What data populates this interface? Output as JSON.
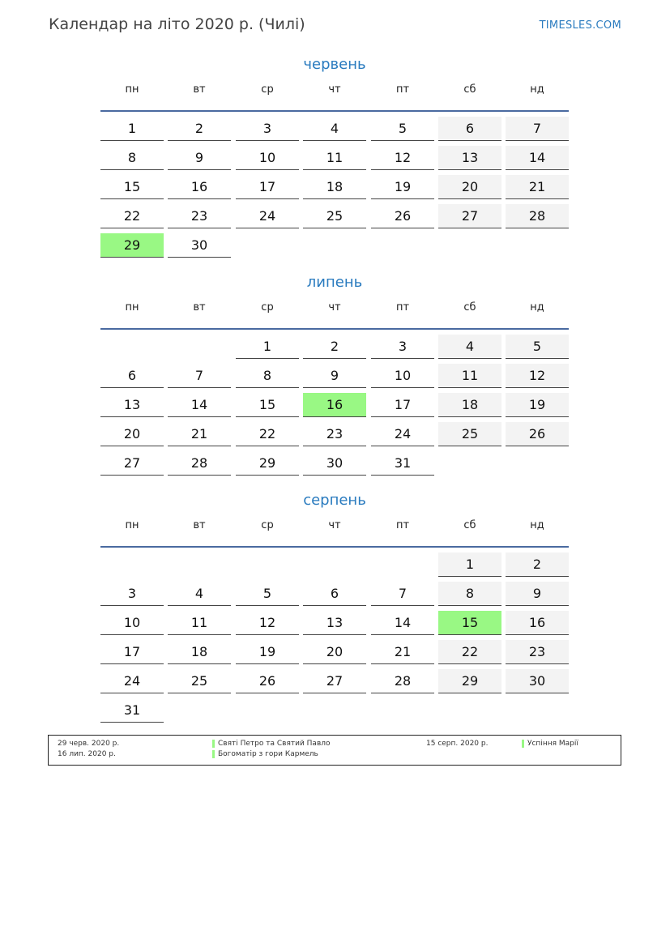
{
  "header": {
    "title": "Календар на літо 2020 р. (Чилі)",
    "site": "TIMESLES.COM"
  },
  "weekdays": [
    "пн",
    "вт",
    "ср",
    "чт",
    "пт",
    "сб",
    "нд"
  ],
  "colors": {
    "accent": "#2a7bbf",
    "holiday": "#99f884",
    "weekend": "#f3f3f3",
    "rule": "#4a6aa0"
  },
  "months": [
    {
      "name": "червень",
      "start_weekday": 0,
      "days": 30,
      "holidays": [
        29
      ]
    },
    {
      "name": "липень",
      "start_weekday": 2,
      "days": 31,
      "holidays": [
        16
      ]
    },
    {
      "name": "серпень",
      "start_weekday": 5,
      "days": 31,
      "holidays": [
        15
      ]
    }
  ],
  "legend": [
    {
      "date": "29 черв. 2020 р.",
      "name": "Святі Петро та Святий Павло"
    },
    {
      "date": "16 лип. 2020 р.",
      "name": "Богоматір з гори Кармель"
    },
    {
      "date": "15 серп. 2020 р.",
      "name": "Успіння Марії"
    }
  ]
}
